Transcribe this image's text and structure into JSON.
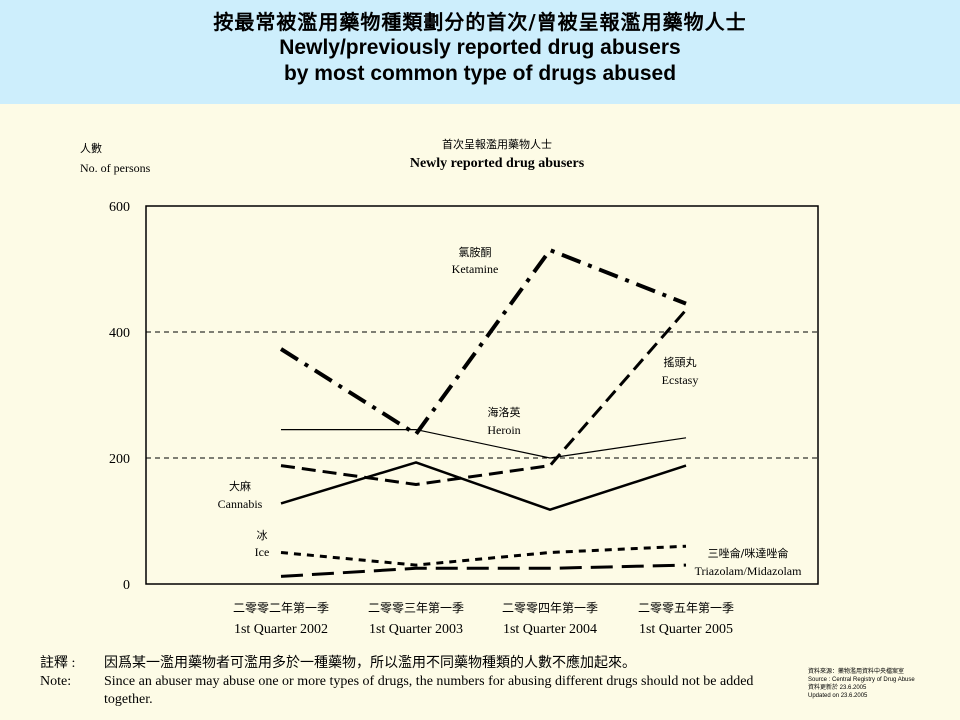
{
  "header": {
    "title_zh": "按最常被濫用藥物種類劃分的首次/曾被呈報濫用藥物人士",
    "title_en_1": "Newly/previously reported drug abusers",
    "title_en_2": "by most common type of drugs abused"
  },
  "chart_data": {
    "type": "line",
    "title_zh": "首次呈報濫用藥物人士",
    "title": "Newly reported drug abusers",
    "ylabel_zh": "人數",
    "ylabel": "No. of persons",
    "ylim": [
      0,
      600
    ],
    "yticks": [
      0,
      200,
      400,
      600
    ],
    "grid": "dashed at 200 and 400",
    "categories": [
      "1st Quarter 2002",
      "1st Quarter 2003",
      "1st Quarter 2004",
      "1st Quarter 2005"
    ],
    "categories_zh": [
      "二零零二年第一季",
      "二零零三年第一季",
      "二零零四年第一季",
      "二零零五年第一季"
    ],
    "series": [
      {
        "name": "Ketamine",
        "name_zh": "氯胺酮",
        "values": [
          373,
          238,
          530,
          445
        ],
        "color": "#000000"
      },
      {
        "name": "Ecstasy",
        "name_zh": "搖頭丸",
        "values": [
          188,
          158,
          188,
          435
        ],
        "color": "#000000"
      },
      {
        "name": "Heroin",
        "name_zh": "海洛英",
        "values": [
          245,
          245,
          200,
          232
        ],
        "color": "#000000"
      },
      {
        "name": "Cannabis",
        "name_zh": "大麻",
        "values": [
          128,
          193,
          118,
          188
        ],
        "color": "#000000"
      },
      {
        "name": "Ice",
        "name_zh": "冰",
        "values": [
          50,
          30,
          50,
          60
        ],
        "color": "#000000"
      },
      {
        "name": "Triazolam/Midazolam",
        "name_zh": "三唑侖/咪達唑侖",
        "values": [
          12,
          25,
          25,
          30
        ],
        "color": "#000000"
      }
    ]
  },
  "footer": {
    "note_key_zh": "註釋 :",
    "note_zh": "因爲某一濫用藥物者可濫用多於一種藥物，所以濫用不同藥物種類的人數不應加起來。",
    "note_key_en": "Note:",
    "note_en": "Since an abuser may abuse one or more types of drugs, the numbers for abusing different drugs should not be added together.",
    "source_zh": "資料來源：藥物濫用資料中央檔案室",
    "source_en": "Source : Central Registry of Drug Abuse",
    "updated_zh": "資料更新於 23.6.2005",
    "updated_en": "Updated on 23.6.2005"
  }
}
